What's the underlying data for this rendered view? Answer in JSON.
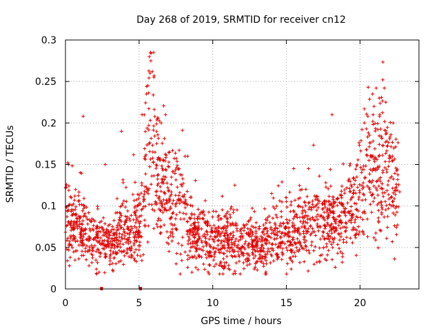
{
  "chart_data": {
    "type": "scatter",
    "title": "Day 268 of 2019, SRMTID for receiver cn12",
    "xlabel": "GPS time / hours",
    "ylabel": "SRMTID / TECUs",
    "xlim": [
      0,
      24
    ],
    "ylim": [
      0,
      0.3
    ],
    "xticks": [
      0,
      5,
      10,
      15,
      20
    ],
    "xtick_labels": [
      "0",
      "5",
      "10",
      "15",
      "20"
    ],
    "yticks": [
      0,
      0.05,
      0.1,
      0.15,
      0.2,
      0.25,
      0.3
    ],
    "ytick_labels": [
      "0",
      "0.05",
      "0.1",
      "0.15",
      "0.2",
      "0.25",
      "0.3"
    ],
    "grid": true,
    "marker": "+",
    "color": "#e00000",
    "series": [
      {
        "name": "SRMTID",
        "trend": [
          [
            0.0,
            0.085
          ],
          [
            0.5,
            0.07
          ],
          [
            1.0,
            0.075
          ],
          [
            1.5,
            0.06
          ],
          [
            2.0,
            0.055
          ],
          [
            2.5,
            0.06
          ],
          [
            3.0,
            0.05
          ],
          [
            3.5,
            0.06
          ],
          [
            4.0,
            0.075
          ],
          [
            4.5,
            0.065
          ],
          [
            5.0,
            0.075
          ],
          [
            5.3,
            0.1
          ],
          [
            5.6,
            0.17
          ],
          [
            6.0,
            0.15
          ],
          [
            6.5,
            0.12
          ],
          [
            7.0,
            0.11
          ],
          [
            7.5,
            0.11
          ],
          [
            8.0,
            0.1
          ],
          [
            8.5,
            0.065
          ],
          [
            9.0,
            0.065
          ],
          [
            10.0,
            0.06
          ],
          [
            11.0,
            0.06
          ],
          [
            12.0,
            0.055
          ],
          [
            13.0,
            0.05
          ],
          [
            14.0,
            0.06
          ],
          [
            15.0,
            0.065
          ],
          [
            16.0,
            0.075
          ],
          [
            17.0,
            0.08
          ],
          [
            18.0,
            0.08
          ],
          [
            19.0,
            0.085
          ],
          [
            20.0,
            0.12
          ],
          [
            20.5,
            0.145
          ],
          [
            21.0,
            0.14
          ],
          [
            21.5,
            0.15
          ],
          [
            22.0,
            0.13
          ],
          [
            22.5,
            0.11
          ],
          [
            22.7,
            0.1
          ]
        ],
        "highlights": [
          [
            5.7,
            0.28
          ],
          [
            5.8,
            0.275
          ],
          [
            5.9,
            0.262
          ],
          [
            6.0,
            0.255
          ],
          [
            5.75,
            0.26
          ],
          [
            5.6,
            0.245
          ],
          [
            5.5,
            0.235
          ],
          [
            21.55,
            0.252
          ],
          [
            21.65,
            0.242
          ],
          [
            21.1,
            0.242
          ],
          [
            20.85,
            0.235
          ],
          [
            21.75,
            0.225
          ],
          [
            20.95,
            0.22
          ],
          [
            6.8,
            0.21
          ],
          [
            6.5,
            0.2
          ],
          [
            5.2,
            0.21
          ],
          [
            1.2,
            0.208
          ],
          [
            18.1,
            0.21
          ],
          [
            3.8,
            0.19
          ],
          [
            20.3,
            0.2
          ],
          [
            21.3,
            0.23
          ],
          [
            22.2,
            0.16
          ],
          [
            2.7,
            0.15
          ],
          [
            1.0,
            0.14
          ],
          [
            0.2,
            0.15
          ],
          [
            15.5,
            0.145
          ],
          [
            16.5,
            0.145
          ],
          [
            8.3,
            0.16
          ],
          [
            14.0,
            0.115
          ],
          [
            11.5,
            0.125
          ]
        ],
        "zero_markers": [
          [
            2.45,
            0.0
          ],
          [
            5.1,
            0.0
          ]
        ]
      }
    ]
  }
}
